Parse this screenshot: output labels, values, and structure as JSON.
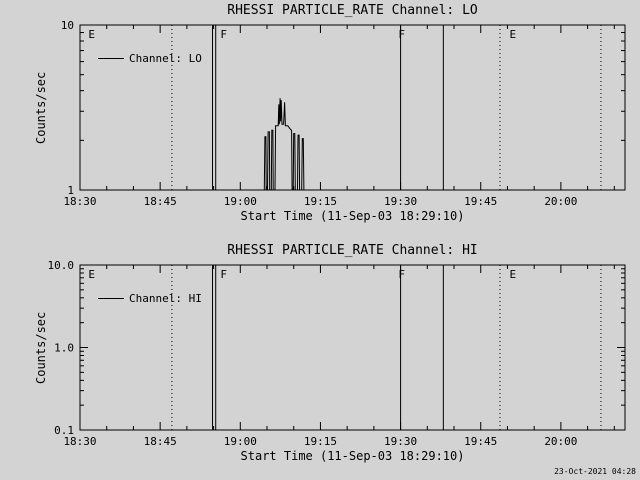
{
  "colors": {
    "background": "#d3d3d3",
    "foreground": "#000000"
  },
  "footer": {
    "timestamp": "23-Oct-2021 04:28"
  },
  "chart_data": [
    {
      "id": "lo",
      "type": "line",
      "title": "RHESSI PARTICLE_RATE Channel: LO",
      "xlabel": "Start Time (11-Sep-03 18:29:10)",
      "ylabel": "Counts/sec",
      "legend_label": "Channel: LO",
      "yscale": "log",
      "ylim": [
        1,
        10
      ],
      "yticks": [
        {
          "value": 1,
          "label": "1"
        },
        {
          "value": 10,
          "label": "10"
        }
      ],
      "xlim": [
        0,
        102
      ],
      "x_minor_step": 5,
      "xticks": [
        {
          "value": 0,
          "label": "18:30"
        },
        {
          "value": 15,
          "label": "18:45"
        },
        {
          "value": 30,
          "label": "19:00"
        },
        {
          "value": 45,
          "label": "19:15"
        },
        {
          "value": 60,
          "label": "19:30"
        },
        {
          "value": 75,
          "label": "19:45"
        },
        {
          "value": 90,
          "label": "20:00"
        }
      ],
      "markers": [
        {
          "x": 17.2,
          "style": "dotted"
        },
        {
          "x": 24.8,
          "style": "solid"
        },
        {
          "x": 25.4,
          "style": "solid"
        },
        {
          "x": 60.0,
          "style": "solid"
        },
        {
          "x": 68.0,
          "style": "solid"
        },
        {
          "x": 78.6,
          "style": "dotted"
        },
        {
          "x": 97.5,
          "style": "dotted"
        }
      ],
      "flags": [
        {
          "x": 1.2,
          "label": "E"
        },
        {
          "x": 25.9,
          "label": "F"
        },
        {
          "x": 59.2,
          "label": "F"
        },
        {
          "x": 80.0,
          "label": "E"
        }
      ],
      "series": [
        {
          "name": "Channel: LO",
          "points": [
            [
              34.5,
              1
            ],
            [
              34.6,
              2.1
            ],
            [
              34.8,
              2.1
            ],
            [
              34.85,
              1
            ],
            [
              35.1,
              1
            ],
            [
              35.2,
              2.25
            ],
            [
              35.45,
              2.25
            ],
            [
              35.5,
              1
            ],
            [
              35.8,
              1
            ],
            [
              35.9,
              2.3
            ],
            [
              36.1,
              2.3
            ],
            [
              36.15,
              1
            ],
            [
              36.5,
              1
            ],
            [
              36.6,
              2.45
            ],
            [
              37.1,
              2.45
            ],
            [
              37.2,
              3.3
            ],
            [
              37.3,
              2.5
            ],
            [
              37.45,
              3.6
            ],
            [
              37.55,
              2.6
            ],
            [
              37.65,
              3.5
            ],
            [
              37.8,
              2.5
            ],
            [
              38.1,
              2.5
            ],
            [
              38.3,
              3.4
            ],
            [
              38.45,
              2.45
            ],
            [
              38.9,
              2.45
            ],
            [
              39.3,
              2.35
            ],
            [
              39.6,
              2.3
            ],
            [
              39.7,
              1
            ],
            [
              39.9,
              1
            ],
            [
              40.0,
              2.2
            ],
            [
              40.2,
              2.2
            ],
            [
              40.3,
              1
            ],
            [
              40.7,
              1
            ],
            [
              40.8,
              2.15
            ],
            [
              41.0,
              2.15
            ],
            [
              41.1,
              1
            ],
            [
              41.5,
              1
            ],
            [
              41.6,
              2.05
            ],
            [
              41.8,
              2.05
            ],
            [
              41.9,
              1
            ]
          ]
        }
      ]
    },
    {
      "id": "hi",
      "type": "line",
      "title": "RHESSI PARTICLE_RATE Channel: HI",
      "xlabel": "Start Time (11-Sep-03 18:29:10)",
      "ylabel": "Counts/sec",
      "legend_label": "Channel: HI",
      "yscale": "log",
      "ylim": [
        0.1,
        10
      ],
      "yticks": [
        {
          "value": 0.1,
          "label": "0.1"
        },
        {
          "value": 1,
          "label": "1.0"
        },
        {
          "value": 10,
          "label": "10.0"
        }
      ],
      "xlim": [
        0,
        102
      ],
      "x_minor_step": 5,
      "xticks": [
        {
          "value": 0,
          "label": "18:30"
        },
        {
          "value": 15,
          "label": "18:45"
        },
        {
          "value": 30,
          "label": "19:00"
        },
        {
          "value": 45,
          "label": "19:15"
        },
        {
          "value": 60,
          "label": "19:30"
        },
        {
          "value": 75,
          "label": "19:45"
        },
        {
          "value": 90,
          "label": "20:00"
        }
      ],
      "markers": [
        {
          "x": 17.2,
          "style": "dotted"
        },
        {
          "x": 24.8,
          "style": "solid"
        },
        {
          "x": 25.4,
          "style": "solid"
        },
        {
          "x": 60.0,
          "style": "solid"
        },
        {
          "x": 68.0,
          "style": "solid"
        },
        {
          "x": 78.6,
          "style": "dotted"
        },
        {
          "x": 97.5,
          "style": "dotted"
        }
      ],
      "flags": [
        {
          "x": 1.2,
          "label": "E"
        },
        {
          "x": 25.9,
          "label": "F"
        },
        {
          "x": 59.2,
          "label": "F"
        },
        {
          "x": 80.0,
          "label": "E"
        }
      ],
      "series": [
        {
          "name": "Channel: HI",
          "points": []
        }
      ]
    }
  ]
}
